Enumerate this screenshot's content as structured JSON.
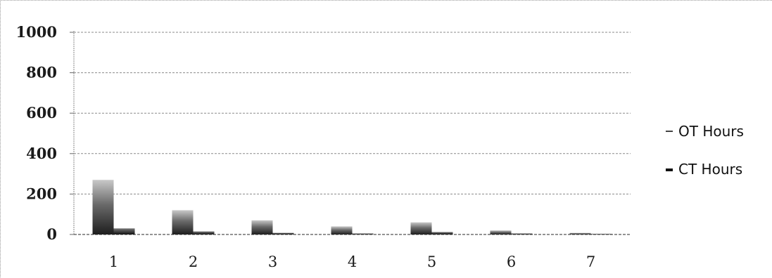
{
  "chart_data": {
    "type": "bar",
    "categories": [
      "1",
      "2",
      "3",
      "4",
      "5",
      "6",
      "7"
    ],
    "series": [
      {
        "name": "OT Hours",
        "values": [
          270,
          120,
          70,
          40,
          60,
          20,
          8
        ],
        "color": "#555555"
      },
      {
        "name": "CT Hours",
        "values": [
          30,
          15,
          8,
          5,
          12,
          5,
          3
        ],
        "color": "#222222"
      }
    ],
    "yticks": [
      "0",
      "200",
      "400",
      "600",
      "800",
      "1000"
    ],
    "ylim": [
      0,
      1000
    ],
    "grid": true,
    "legend_position": "right"
  }
}
